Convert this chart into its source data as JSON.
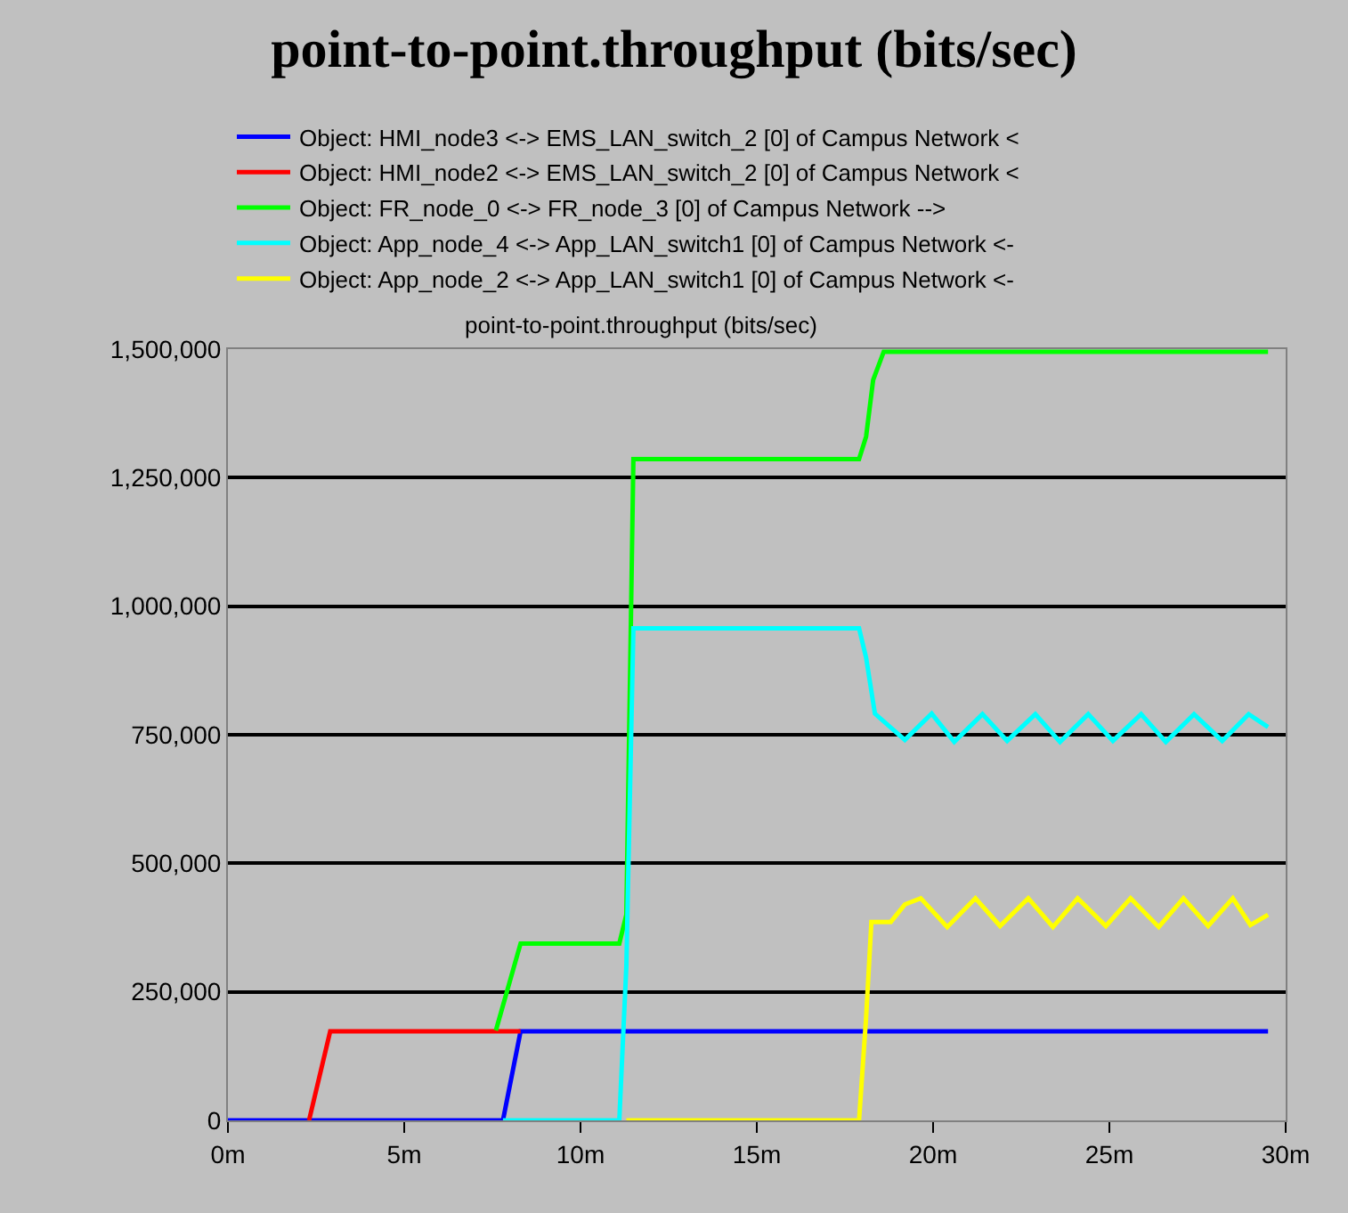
{
  "chart_data": {
    "type": "line",
    "title": "point-to-point.throughput (bits/sec)",
    "subtitle": "point-to-point.throughput (bits/sec)",
    "xlim": [
      0,
      30
    ],
    "xticks": [
      {
        "value": 0,
        "label": "0m"
      },
      {
        "value": 5,
        "label": "5m"
      },
      {
        "value": 10,
        "label": "10m"
      },
      {
        "value": 15,
        "label": "15m"
      },
      {
        "value": 20,
        "label": "20m"
      },
      {
        "value": 25,
        "label": "25m"
      },
      {
        "value": 30,
        "label": "30m"
      }
    ],
    "ylim": [
      0,
      1500000
    ],
    "yticks": [
      0,
      {
        "value": 250000,
        "label": "250,000"
      },
      {
        "value": 500000,
        "label": "500,000"
      },
      {
        "value": 750000,
        "label": "750,000"
      },
      {
        "value": 1000000,
        "label": "1,000,000"
      },
      {
        "value": 1250000,
        "label": "1,250,000"
      },
      {
        "value": 1500000,
        "label": "1,500,000"
      }
    ],
    "grid": "y",
    "legend": "top",
    "marker": "none",
    "line_style": "solid",
    "series": [
      {
        "name": "Object: HMI_node3 <-> EMS_LAN_switch_2 [0] of Campus Network <",
        "color": "#0000ff",
        "x": [
          0,
          7.8,
          8.3,
          29.5
        ],
        "values": [
          0,
          0,
          173000,
          173000
        ]
      },
      {
        "name": "Object: HMI_node2 <-> EMS_LAN_switch_2 [0] of Campus Network <",
        "color": "#ff0000",
        "x": [
          2.3,
          2.9,
          8.3
        ],
        "values": [
          0,
          173000,
          173000
        ]
      },
      {
        "name": "Object: FR_node_0 <-> FR_node_3 [0] of Campus Network -->",
        "color": "#00ff00",
        "x": [
          7.6,
          8.3,
          11.1,
          11.3,
          11.5,
          17.9,
          18.1,
          18.3,
          18.6,
          20,
          22,
          24,
          26,
          28,
          29.5
        ],
        "values": [
          175000,
          344000,
          344000,
          400000,
          1286000,
          1286000,
          1330000,
          1440000,
          1495000,
          1495000,
          1495000,
          1495000,
          1495000,
          1495000,
          1495000
        ]
      },
      {
        "name": "Object: App_node_4 <-> App_LAN_switch1 [0] of Campus Network <-",
        "color": "#00ffff",
        "x": [
          7.8,
          11.1,
          11.3,
          11.5,
          17.9,
          18.1,
          18.35,
          19.2,
          19.96,
          20.6,
          21.4,
          22.1,
          22.9,
          23.6,
          24.4,
          25.1,
          25.9,
          26.6,
          27.4,
          28.2,
          28.95,
          29.5
        ],
        "values": [
          0,
          0,
          300000,
          957000,
          957000,
          900000,
          791000,
          740000,
          791000,
          736000,
          790000,
          738000,
          790000,
          736000,
          790000,
          738000,
          790000,
          736000,
          790000,
          738000,
          790000,
          765000
        ]
      },
      {
        "name": "Object: App_node_2 <-> App_LAN_switch1 [0] of Campus Network <-",
        "color": "#ffff00",
        "x": [
          11.3,
          17.9,
          18.1,
          18.25,
          18.8,
          19.2,
          19.65,
          20.4,
          21.2,
          21.9,
          22.7,
          23.4,
          24.1,
          24.9,
          25.6,
          26.4,
          27.1,
          27.8,
          28.5,
          29.0,
          29.5
        ],
        "values": [
          0,
          0,
          200000,
          386000,
          386000,
          420000,
          432000,
          376000,
          432000,
          378000,
          432000,
          376000,
          432000,
          378000,
          432000,
          376000,
          432000,
          378000,
          432000,
          380000,
          400000
        ]
      }
    ]
  }
}
